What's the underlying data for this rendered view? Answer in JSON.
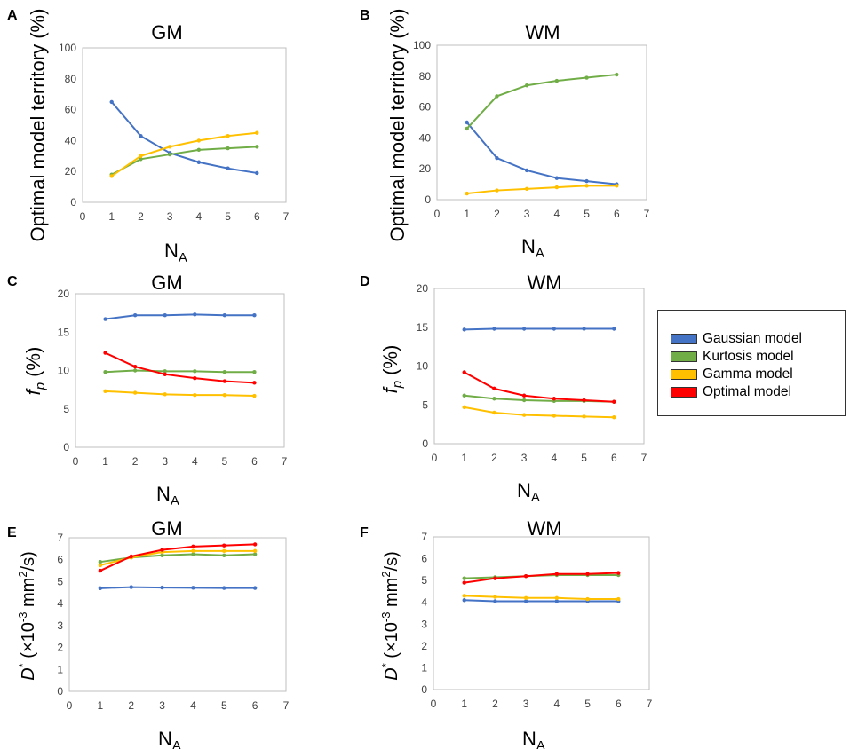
{
  "colors": {
    "Gaussian model": "#4472c4",
    "Kurtosis model": "#70ad47",
    "Gamma model": "#ffc000",
    "Optimal model": "#ff0000"
  },
  "legend": {
    "items": [
      "Gaussian model",
      "Kurtosis model",
      "Gamma model",
      "Optimal model"
    ]
  },
  "chart_data": [
    {
      "panel": "A",
      "type": "line",
      "title": "GM",
      "xlabel_main": "N",
      "xlabel_sub": "A",
      "ylabel": "Optimal model territory (%)",
      "xlim": [
        0,
        7
      ],
      "xticks": [
        0,
        1,
        2,
        3,
        4,
        5,
        6,
        7
      ],
      "ylim": [
        0,
        100
      ],
      "yticks": [
        0,
        20,
        40,
        60,
        80,
        100
      ],
      "x": [
        1,
        2,
        3,
        4,
        5,
        6
      ],
      "series": [
        {
          "name": "Gaussian model",
          "values": [
            65,
            43,
            32,
            26,
            22,
            19
          ]
        },
        {
          "name": "Kurtosis model",
          "values": [
            18,
            28,
            31,
            34,
            35,
            36
          ]
        },
        {
          "name": "Gamma model",
          "values": [
            17,
            30,
            36,
            40,
            43,
            45
          ]
        }
      ]
    },
    {
      "panel": "B",
      "type": "line",
      "title": "WM",
      "xlabel_main": "N",
      "xlabel_sub": "A",
      "ylabel": "Optimal model territory (%)",
      "xlim": [
        0,
        7
      ],
      "xticks": [
        0,
        1,
        2,
        3,
        4,
        5,
        6,
        7
      ],
      "ylim": [
        0,
        100
      ],
      "yticks": [
        0,
        20,
        40,
        60,
        80,
        100
      ],
      "x": [
        1,
        2,
        3,
        4,
        5,
        6
      ],
      "series": [
        {
          "name": "Gaussian model",
          "values": [
            50,
            27,
            19,
            14,
            12,
            10
          ]
        },
        {
          "name": "Kurtosis model",
          "values": [
            46,
            67,
            74,
            77,
            79,
            81
          ]
        },
        {
          "name": "Gamma model",
          "values": [
            4,
            6,
            7,
            8,
            9,
            9
          ]
        }
      ]
    },
    {
      "panel": "C",
      "type": "line",
      "title": "GM",
      "xlabel_main": "N",
      "xlabel_sub": "A",
      "ylabel_main": "f",
      "ylabel_sub": "p",
      "ylabel_rest": " (%)",
      "xlim": [
        0,
        7
      ],
      "xticks": [
        0,
        1,
        2,
        3,
        4,
        5,
        6,
        7
      ],
      "ylim": [
        0,
        20
      ],
      "yticks": [
        0,
        5,
        10,
        15,
        20
      ],
      "x": [
        1,
        2,
        3,
        4,
        5,
        6
      ],
      "series": [
        {
          "name": "Gaussian model",
          "values": [
            16.7,
            17.2,
            17.2,
            17.3,
            17.2,
            17.2
          ]
        },
        {
          "name": "Kurtosis model",
          "values": [
            9.8,
            10.0,
            9.9,
            9.9,
            9.8,
            9.8
          ]
        },
        {
          "name": "Gamma model",
          "values": [
            7.3,
            7.1,
            6.9,
            6.8,
            6.8,
            6.7
          ]
        },
        {
          "name": "Optimal model",
          "values": [
            12.3,
            10.5,
            9.5,
            9.0,
            8.6,
            8.4
          ]
        }
      ]
    },
    {
      "panel": "D",
      "type": "line",
      "title": "WM",
      "xlabel_main": "N",
      "xlabel_sub": "A",
      "ylabel_main": "f",
      "ylabel_sub": "p",
      "ylabel_rest": " (%)",
      "xlim": [
        0,
        7
      ],
      "xticks": [
        0,
        1,
        2,
        3,
        4,
        5,
        6,
        7
      ],
      "ylim": [
        0,
        20
      ],
      "yticks": [
        0,
        5,
        10,
        15,
        20
      ],
      "x": [
        1,
        2,
        3,
        4,
        5,
        6
      ],
      "series": [
        {
          "name": "Gaussian model",
          "values": [
            14.7,
            14.8,
            14.8,
            14.8,
            14.8,
            14.8
          ]
        },
        {
          "name": "Kurtosis model",
          "values": [
            6.2,
            5.8,
            5.6,
            5.5,
            5.5,
            5.4
          ]
        },
        {
          "name": "Gamma model",
          "values": [
            4.7,
            4.0,
            3.7,
            3.6,
            3.5,
            3.4
          ]
        },
        {
          "name": "Optimal model",
          "values": [
            9.2,
            7.1,
            6.2,
            5.8,
            5.6,
            5.4
          ]
        }
      ]
    },
    {
      "panel": "E",
      "type": "line",
      "title": "GM",
      "xlabel_main": "N",
      "xlabel_sub": "A",
      "ylabel_main": "D",
      "ylabel_sup": "*",
      "ylabel_mid": " (×10",
      "ylabel_exp": "-3",
      "ylabel_units": " mm",
      "ylabel_units_sup": "2",
      "ylabel_end": "/s)",
      "xlim": [
        0,
        7
      ],
      "xticks": [
        0,
        1,
        2,
        3,
        4,
        5,
        6,
        7
      ],
      "ylim": [
        0,
        7
      ],
      "yticks": [
        0,
        1,
        2,
        3,
        4,
        5,
        6,
        7
      ],
      "x": [
        1,
        2,
        3,
        4,
        5,
        6
      ],
      "series": [
        {
          "name": "Gaussian model",
          "values": [
            4.7,
            4.75,
            4.73,
            4.72,
            4.71,
            4.71
          ]
        },
        {
          "name": "Kurtosis model",
          "values": [
            5.9,
            6.1,
            6.2,
            6.25,
            6.2,
            6.25
          ]
        },
        {
          "name": "Gamma model",
          "values": [
            5.75,
            6.1,
            6.35,
            6.4,
            6.4,
            6.4
          ]
        },
        {
          "name": "Optimal model",
          "values": [
            5.5,
            6.15,
            6.45,
            6.6,
            6.65,
            6.7
          ]
        }
      ]
    },
    {
      "panel": "F",
      "type": "line",
      "title": "WM",
      "xlabel_main": "N",
      "xlabel_sub": "A",
      "ylabel_main": "D",
      "ylabel_sup": "*",
      "ylabel_mid": " (×10",
      "ylabel_exp": "-3",
      "ylabel_units": " mm",
      "ylabel_units_sup": "2",
      "ylabel_end": "/s)",
      "xlim": [
        0,
        7
      ],
      "xticks": [
        0,
        1,
        2,
        3,
        4,
        5,
        6,
        7
      ],
      "ylim": [
        0,
        7
      ],
      "yticks": [
        0,
        1,
        2,
        3,
        4,
        5,
        6,
        7
      ],
      "x": [
        1,
        2,
        3,
        4,
        5,
        6
      ],
      "series": [
        {
          "name": "Gaussian model",
          "values": [
            4.1,
            4.05,
            4.05,
            4.05,
            4.05,
            4.05
          ]
        },
        {
          "name": "Kurtosis model",
          "values": [
            5.1,
            5.15,
            5.2,
            5.25,
            5.25,
            5.25
          ]
        },
        {
          "name": "Gamma model",
          "values": [
            4.3,
            4.25,
            4.2,
            4.2,
            4.15,
            4.15
          ]
        },
        {
          "name": "Optimal model",
          "values": [
            4.9,
            5.1,
            5.2,
            5.3,
            5.3,
            5.35
          ]
        }
      ]
    }
  ]
}
